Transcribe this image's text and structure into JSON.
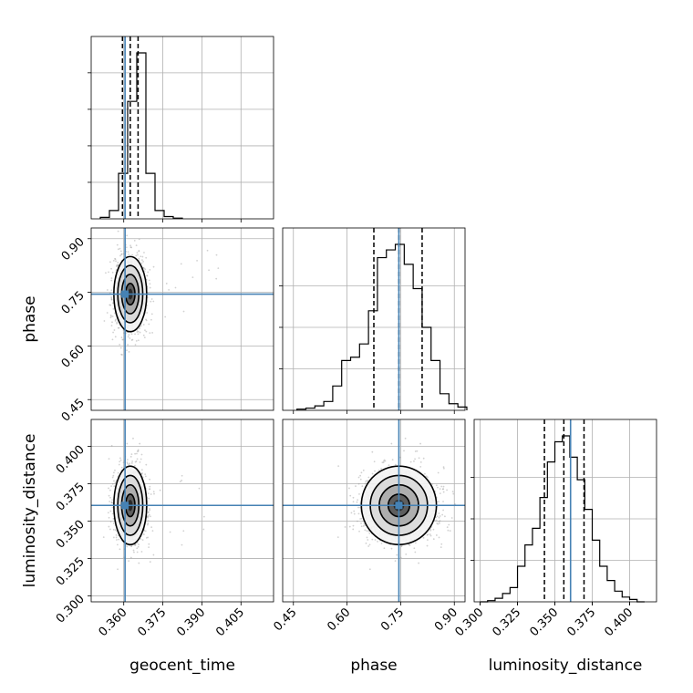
{
  "chart_data": {
    "type": "corner",
    "parameters": [
      "geocent_time",
      "phase",
      "luminosity_distance"
    ],
    "truths": {
      "geocent_time": 0.3605,
      "phase": 0.745,
      "luminosity_distance": 0.3605
    },
    "ranges": {
      "geocent_time": [
        0.3475,
        0.4175
      ],
      "phase": [
        0.42,
        0.93
      ],
      "luminosity_distance": [
        0.296,
        0.418
      ]
    },
    "ticks": {
      "geocent_time": [
        "0.360",
        "0.375",
        "0.390",
        "0.405"
      ],
      "phase": [
        "0.45",
        "0.60",
        "0.75",
        "0.90"
      ],
      "luminosity_distance": [
        "0.300",
        "0.325",
        "0.350",
        "0.375",
        "0.400"
      ]
    },
    "quantiles": {
      "geocent_time": [
        0.3595,
        0.3625,
        0.3655
      ],
      "phase": [
        0.675,
        0.745,
        0.81
      ],
      "luminosity_distance": [
        0.343,
        0.356,
        0.3695
      ]
    },
    "histograms": {
      "geocent_time": {
        "edges": [
          0.351,
          0.3545,
          0.358,
          0.3615,
          0.365,
          0.3685,
          0.372,
          0.3755,
          0.379,
          0.3825
        ],
        "counts": [
          2,
          11,
          60,
          155,
          219,
          60,
          11,
          3,
          1
        ]
      },
      "phase": {
        "edges": [
          0.46,
          0.485,
          0.51,
          0.535,
          0.56,
          0.585,
          0.61,
          0.635,
          0.66,
          0.685,
          0.71,
          0.735,
          0.76,
          0.785,
          0.81,
          0.835,
          0.86,
          0.885,
          0.91,
          0.935
        ],
        "counts": [
          1,
          2,
          4,
          8,
          22,
          45,
          48,
          60,
          90,
          138,
          145,
          150,
          132,
          110,
          75,
          45,
          15,
          6,
          3
        ]
      },
      "luminosity_distance": {
        "edges": [
          0.3,
          0.305,
          0.31,
          0.315,
          0.32,
          0.325,
          0.33,
          0.335,
          0.34,
          0.345,
          0.35,
          0.355,
          0.36,
          0.365,
          0.37,
          0.375,
          0.38,
          0.385,
          0.39,
          0.395,
          0.4,
          0.405,
          0.41
        ],
        "counts": [
          0,
          1,
          3,
          7,
          12,
          30,
          48,
          62,
          88,
          118,
          135,
          140,
          122,
          103,
          78,
          52,
          30,
          18,
          9,
          4,
          2,
          0
        ]
      }
    },
    "joint": {
      "phase_vs_geocent_time": {
        "center": [
          0.3625,
          0.745
        ],
        "spread": [
          0.003,
          0.05
        ]
      },
      "luminosity_distance_vs_geocent_time": {
        "center": [
          0.3625,
          0.3605
        ],
        "spread": [
          0.003,
          0.0125
        ]
      },
      "luminosity_distance_vs_phase": {
        "center": [
          0.745,
          0.3605
        ],
        "spread": [
          0.05,
          0.0125
        ]
      }
    },
    "colors": {
      "truth": "#4682b4",
      "hist": "#000000",
      "grid": "#b0b0b0",
      "points": "#999999"
    }
  }
}
